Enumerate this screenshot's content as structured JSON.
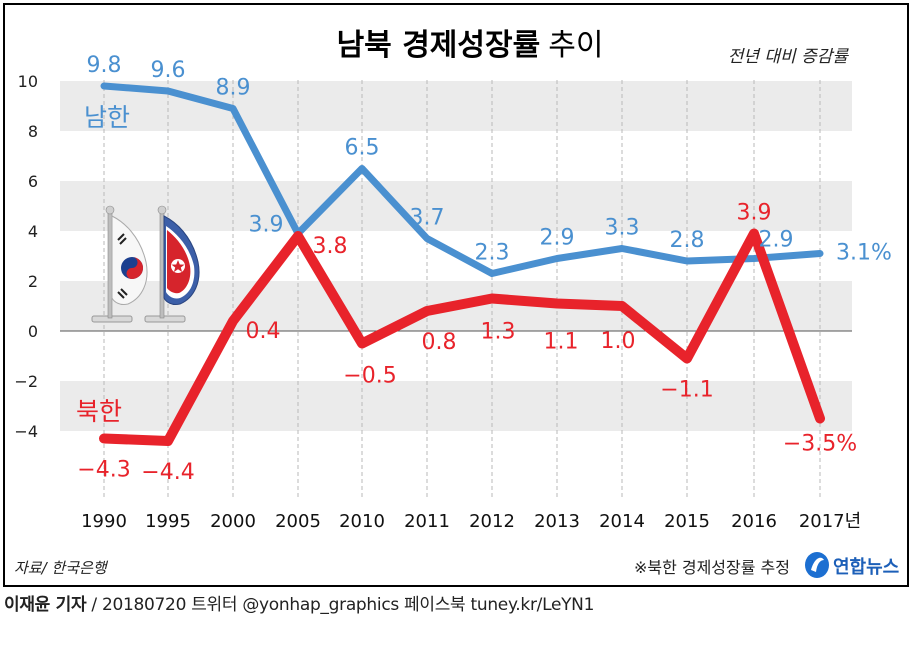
{
  "header": {
    "title_bold": "남북 경제성장률",
    "title_light": "추이",
    "unit_note": "전년 대비 증감률"
  },
  "footer": {
    "source": "자료/ 한국은행",
    "estimate_note": "※북한 경제성장률 추정",
    "brand": "연합뉴스",
    "reporter": "이재윤 기자",
    "credit_rest": " / 20180720  트위터 @yonhap_graphics  페이스북 tuney.kr/LeYN1"
  },
  "colors": {
    "south": "#4a90d0",
    "north": "#e8232b",
    "band": "#ebebeb",
    "frame": "#000000"
  },
  "icons": [
    "south-korea-flag-icon",
    "north-korea-flag-icon"
  ],
  "chart_data": {
    "type": "line",
    "title": "남북 경제성장률 추이",
    "ylabel": "전년 대비 증감률",
    "xlabel": "",
    "categories": [
      "1990",
      "1995",
      "2000",
      "2005",
      "2010",
      "2011",
      "2012",
      "2013",
      "2014",
      "2015",
      "2016",
      "2017년"
    ],
    "ylim": [
      -6,
      10
    ],
    "yticks": [
      "10",
      "8",
      "6",
      "4",
      "2",
      "0",
      "−2",
      "−4"
    ],
    "ytick_values": [
      10,
      8,
      6,
      4,
      2,
      0,
      -2,
      -4
    ],
    "grid": "alternating bands",
    "series": [
      {
        "name": "남한",
        "values": [
          9.8,
          9.6,
          8.9,
          3.9,
          6.5,
          3.7,
          2.3,
          2.9,
          3.3,
          2.8,
          2.9,
          3.1
        ],
        "labels": [
          "9.8",
          "9.6",
          "8.9",
          "3.9",
          "6.5",
          "3.7",
          "2.3",
          "2.9",
          "3.3",
          "2.8",
          "2.9",
          "3.1%"
        ]
      },
      {
        "name": "북한",
        "values": [
          -4.3,
          -4.4,
          0.4,
          3.8,
          -0.5,
          0.8,
          1.3,
          1.1,
          1.0,
          -1.1,
          3.9,
          -3.5
        ],
        "labels": [
          "−4.3",
          "−4.4",
          "0.4",
          "3.8",
          "−0.5",
          "0.8",
          "1.3",
          "1.1",
          "1.0",
          "−1.1",
          "3.9",
          "−3.5%"
        ]
      }
    ]
  }
}
